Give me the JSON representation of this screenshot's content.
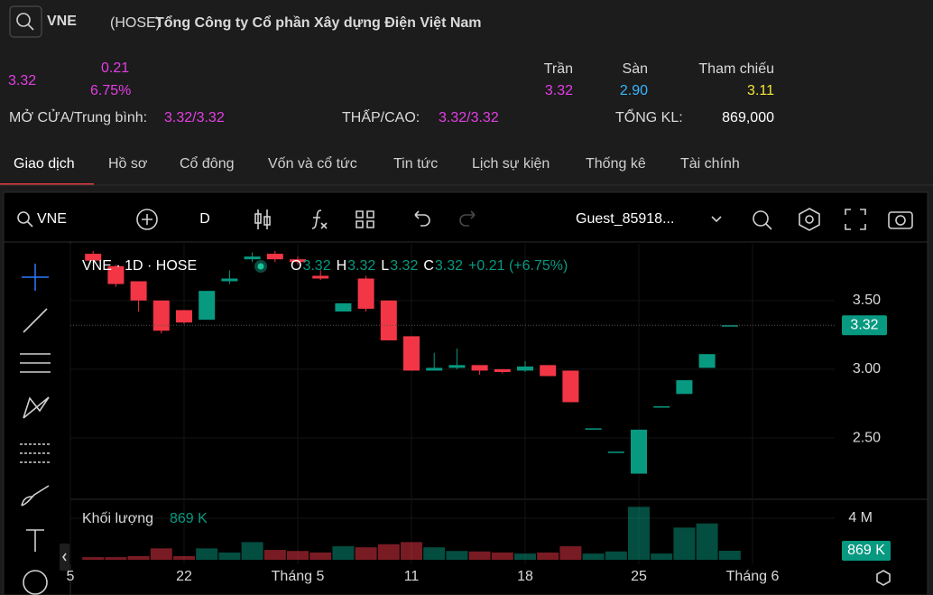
{
  "header": {
    "symbol": "VNE",
    "exchange": "(HOSE)",
    "company": "Tổng Công ty Cổ phần Xây dựng Điện Việt Nam",
    "price": "3.32",
    "change": "0.21",
    "change_pct": "6.75%",
    "ceiling": {
      "label": "Trần",
      "value": "3.32"
    },
    "floor": {
      "label": "Sàn",
      "value": "2.90"
    },
    "reference": {
      "label": "Tham chiếu",
      "value": "3.11"
    },
    "open_avg": {
      "label": "MỞ CỬA/Trung bình:",
      "value": "3.32/3.32"
    },
    "low_high": {
      "label": "THẤP/CAO:",
      "value": "3.32/3.32"
    },
    "total_volume": {
      "label": "TỔNG KL:",
      "value": "869,000"
    }
  },
  "tabs": [
    "Giao dịch",
    "Hồ sơ",
    "Cổ đông",
    "Vốn và cổ tức",
    "Tin tức",
    "Lịch sự kiện",
    "Thống kê",
    "Tài chính"
  ],
  "toolbar": {
    "symbol": "VNE",
    "interval": "D",
    "user": "Guest_85918..."
  },
  "legend": {
    "title": "VNE · 1D · HOSE",
    "items": [
      {
        "key": "O",
        "value": "3.32"
      },
      {
        "key": "H",
        "value": "3.32"
      },
      {
        "key": "L",
        "value": "3.32"
      },
      {
        "key": "C",
        "value": "3.32"
      }
    ],
    "change": "+0.21 (+6.75%)",
    "volume_name": "Khối lượng",
    "volume_value": "869 K"
  },
  "chart_data": {
    "type": "candlestick",
    "categories": [
      "5",
      null,
      null,
      null,
      null,
      "22",
      null,
      null,
      null,
      null,
      "Tháng 5",
      null,
      null,
      null,
      null,
      "11",
      null,
      null,
      null,
      null,
      "18",
      null,
      null,
      null,
      null,
      "25",
      null,
      null,
      null,
      null,
      "Tháng 6"
    ],
    "open": [
      null,
      3.84,
      3.75,
      3.64,
      3.5,
      3.43,
      3.36,
      3.64,
      3.8,
      3.84,
      3.8,
      3.68,
      3.42,
      3.66,
      3.5,
      3.24,
      2.99,
      3.01,
      3.03,
      3.0,
      2.99,
      3.03,
      2.99,
      2.57,
      2.4,
      2.24,
      2.73,
      2.82,
      3.01,
      3.32,
      null
    ],
    "high": [
      null,
      3.86,
      3.76,
      3.64,
      3.5,
      3.43,
      3.57,
      3.72,
      3.85,
      3.86,
      3.82,
      3.72,
      3.48,
      3.68,
      3.5,
      3.24,
      3.12,
      3.15,
      3.03,
      3.0,
      3.06,
      3.03,
      2.99,
      2.57,
      2.4,
      2.56,
      2.73,
      2.92,
      3.11,
      3.32,
      null
    ],
    "low": [
      null,
      3.78,
      3.6,
      3.42,
      3.26,
      3.33,
      3.36,
      3.62,
      3.78,
      3.78,
      3.76,
      3.65,
      3.42,
      3.42,
      3.21,
      2.99,
      2.99,
      3.0,
      2.96,
      2.97,
      2.98,
      2.95,
      2.76,
      2.57,
      2.4,
      2.24,
      2.73,
      2.82,
      3.01,
      3.32,
      null
    ],
    "close": [
      null,
      3.79,
      3.62,
      3.5,
      3.28,
      3.34,
      3.57,
      3.66,
      3.82,
      3.8,
      3.78,
      3.66,
      3.48,
      3.44,
      3.21,
      2.99,
      3.01,
      3.03,
      2.99,
      2.98,
      3.02,
      2.95,
      2.76,
      2.57,
      2.4,
      2.56,
      2.73,
      2.92,
      3.11,
      3.32,
      null
    ],
    "volume": [
      null,
      250000,
      250000,
      350000,
      1100000,
      350000,
      1100000,
      700000,
      1700000,
      950000,
      850000,
      700000,
      1300000,
      1200000,
      1500000,
      1700000,
      1200000,
      850000,
      800000,
      700000,
      600000,
      700000,
      1300000,
      600000,
      800000,
      5100000,
      600000,
      3100000,
      3500000,
      869000,
      null
    ],
    "ylim": [
      2.06,
      3.88
    ],
    "yticks": [
      {
        "value": 2.5,
        "label": "2.50"
      },
      {
        "value": 3,
        "label": "3.00"
      },
      {
        "value": 3.5,
        "label": "3.50"
      }
    ],
    "y2lim": [
      0,
      5650000
    ],
    "y2ticks": [
      {
        "value": 4000000,
        "label": "4 M"
      }
    ],
    "last_price_label": "3.32",
    "last_volume_label": "869 K",
    "up_color": "#089981",
    "down_color": "#f23645"
  }
}
